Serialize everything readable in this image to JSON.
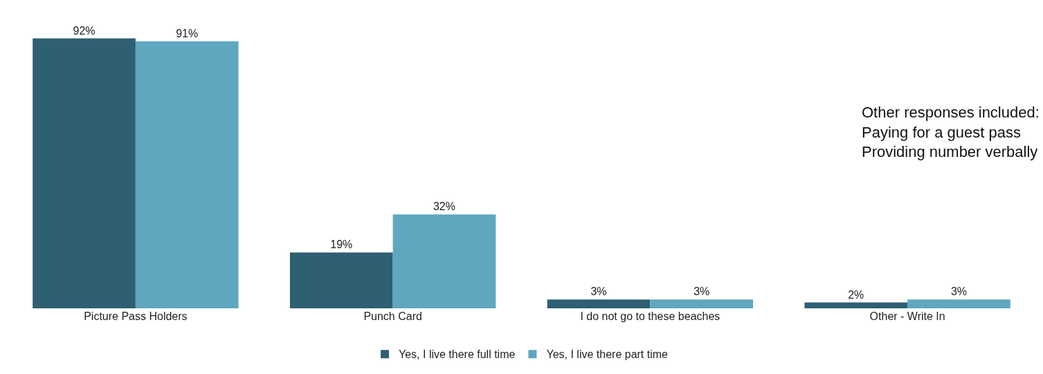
{
  "chart_data": {
    "type": "bar",
    "categories": [
      "Picture Pass Holders",
      "Punch Card",
      "I do not go to these beaches",
      "Other - Write In"
    ],
    "series": [
      {
        "name": "Yes, I live there full time",
        "color": "#2e5f73",
        "values": [
          92,
          19,
          3,
          2
        ],
        "value_labels": [
          "92%",
          "19%",
          "3%",
          "2%"
        ]
      },
      {
        "name": "Yes, I live there part time",
        "color": "#5ea7bf",
        "values": [
          91,
          32,
          3,
          3
        ],
        "value_labels": [
          "91%",
          "32%",
          "3%",
          "3%"
        ]
      }
    ],
    "annotations": [
      "Other responses included:\nPaying for a guest pass\nProviding number verbally"
    ],
    "legend": "bottom",
    "grid": false
  }
}
